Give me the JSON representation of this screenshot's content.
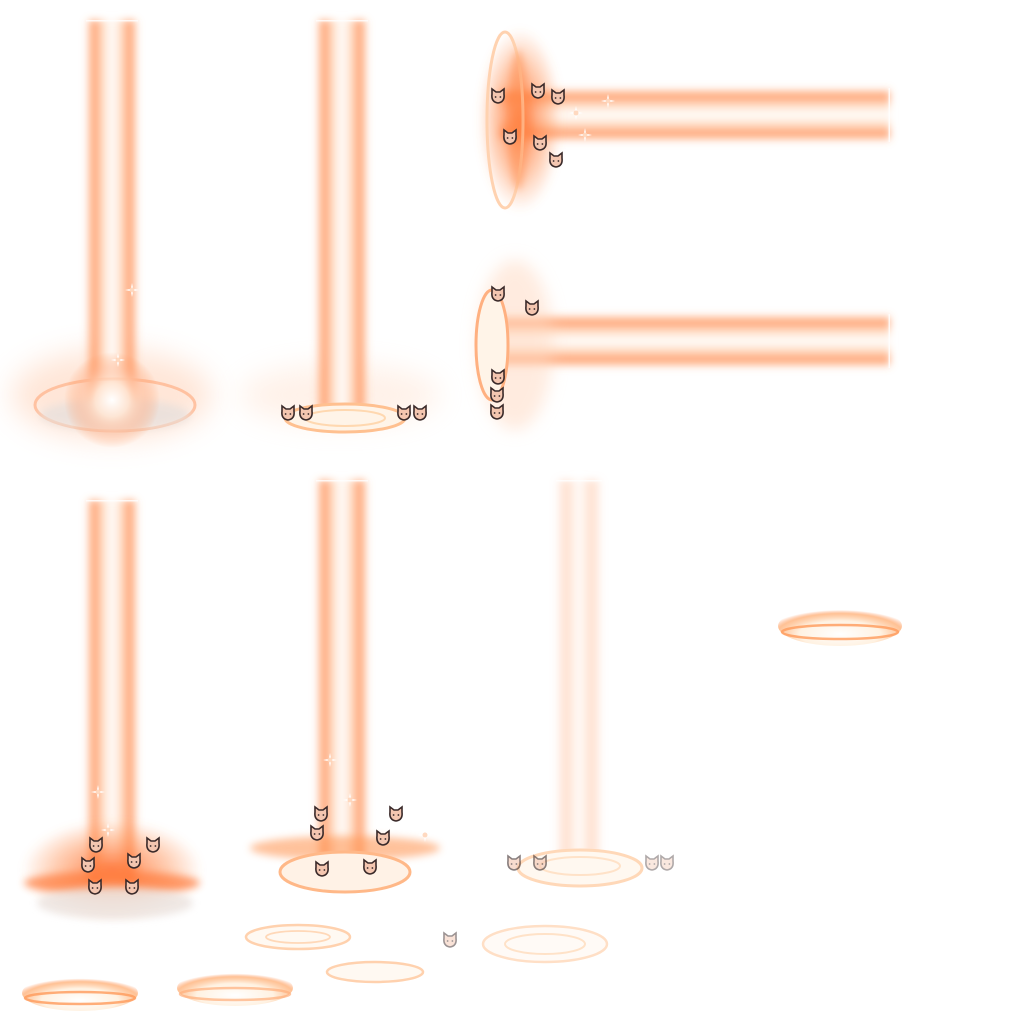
{
  "sprite_sheet": {
    "description_kind": "vfx-sprite-sheet",
    "palette": {
      "core": "#ffffff",
      "inner_glow": "#ffd6b8",
      "outer_glow": "#ff8a4a",
      "deep_glow": "#ff6a2a",
      "ring": "#ffe7c8",
      "cat_face": "#f4c6b0",
      "cat_outline": "#3a2a2a"
    },
    "frames": [
      {
        "name": "vertical-beam-burst",
        "icon": "light-pillar-with-burst"
      },
      {
        "name": "vertical-beam-ring",
        "icon": "light-pillar-with-ring"
      },
      {
        "name": "horizontal-beam-upper",
        "icon": "sideways-light-beam"
      },
      {
        "name": "horizontal-beam-lower",
        "icon": "sideways-light-beam"
      },
      {
        "name": "vertical-beam-flare",
        "icon": "light-pillar-with-flare"
      },
      {
        "name": "vertical-beam-sparkle",
        "icon": "light-pillar-with-sparkles"
      },
      {
        "name": "vertical-beam-faded",
        "icon": "faded-light-pillar"
      },
      {
        "name": "ground-dome",
        "icon": "glowing-dome"
      },
      {
        "name": "ground-ripples",
        "icon": "ripple-rings"
      }
    ]
  }
}
